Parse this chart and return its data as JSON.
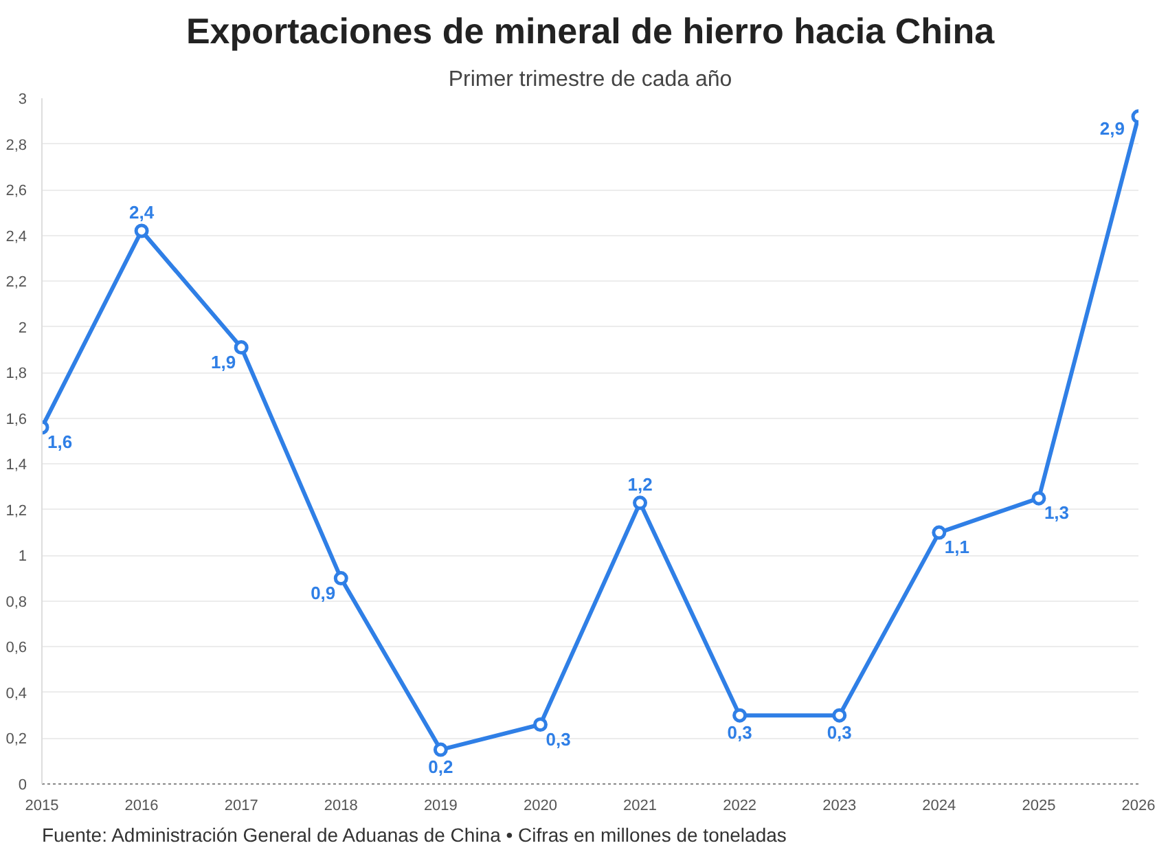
{
  "chart_data": {
    "type": "line",
    "title": "Exportaciones de mineral de hierro hacia China",
    "subtitle": "Primer trimestre de cada año",
    "annotations": [
      "Fuente: Administración General de Aduanas de China • Cifras en millones de toneladas"
    ],
    "x": [
      2015,
      2016,
      2017,
      2018,
      2019,
      2020,
      2021,
      2022,
      2023,
      2024,
      2025,
      2026
    ],
    "series": [
      {
        "color": "#2f7fe6",
        "values": [
          1.56,
          2.42,
          1.91,
          0.9,
          0.15,
          0.26,
          1.23,
          0.3,
          0.3,
          1.1,
          1.25,
          2.92
        ],
        "value_labels": [
          "1,6",
          "2,4",
          "1,9",
          "0,9",
          "0,2",
          "0,3",
          "1,2",
          "0,3",
          "0,3",
          "1,1",
          "1,3",
          "2,9"
        ]
      }
    ],
    "xlim": [
      2015,
      2026
    ],
    "xticks": [
      2015,
      2016,
      2017,
      2018,
      2019,
      2020,
      2021,
      2022,
      2023,
      2024,
      2025,
      2026
    ],
    "ylim": [
      0,
      3
    ],
    "yticks": [
      0,
      {
        "value": 0.2,
        "label": "0,2"
      },
      {
        "value": 0.4,
        "label": "0,4"
      },
      {
        "value": 0.6,
        "label": "0,6"
      },
      {
        "value": 0.8,
        "label": "0,8"
      },
      1,
      {
        "value": 1.2,
        "label": "1,2"
      },
      {
        "value": 1.4,
        "label": "1,4"
      },
      {
        "value": 1.6,
        "label": "1,6"
      },
      {
        "value": 1.8,
        "label": "1,8"
      },
      2,
      {
        "value": 2.2,
        "label": "2,2"
      },
      {
        "value": 2.4,
        "label": "2,4"
      },
      {
        "value": 2.6,
        "label": "2,6"
      },
      {
        "value": 2.8,
        "label": "2,8"
      },
      3
    ],
    "grid": "y",
    "marker": "circle",
    "line_style": "solid"
  }
}
